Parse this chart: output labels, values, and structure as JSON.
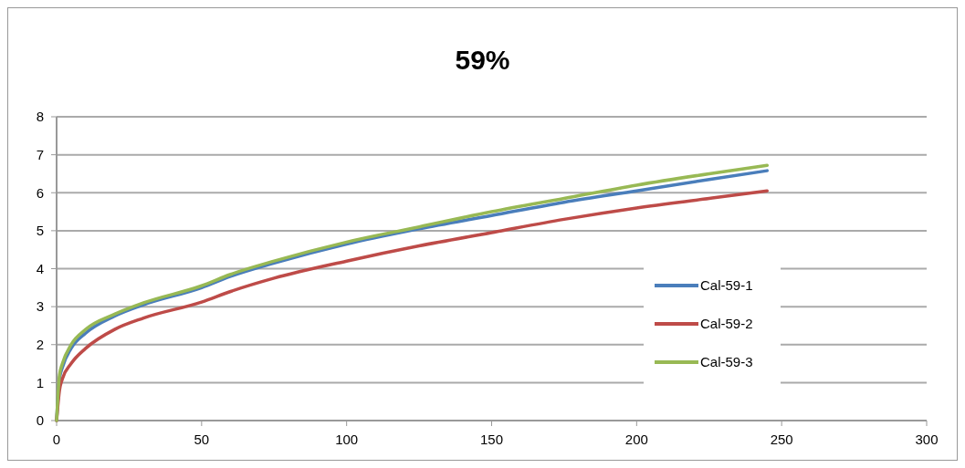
{
  "chart_data": {
    "type": "line",
    "title": "59%",
    "xlim": [
      0,
      300
    ],
    "xticks": [
      0,
      50,
      100,
      150,
      200,
      250,
      300
    ],
    "ylim": [
      0,
      8
    ],
    "yticks": [
      0,
      1,
      2,
      3,
      4,
      5,
      6,
      7,
      8
    ],
    "grid": "y",
    "legend": "right",
    "line_style": "solid",
    "marker": "none",
    "x": [
      0,
      1,
      2,
      5,
      10,
      20,
      30,
      50,
      60,
      75,
      100,
      125,
      150,
      175,
      200,
      225,
      245
    ],
    "series": [
      {
        "name": "Cal-59-1",
        "color": "#4a7ebb",
        "values": [
          0,
          1.1,
          1.4,
          1.9,
          2.3,
          2.75,
          3.05,
          3.5,
          3.8,
          4.15,
          4.65,
          5.05,
          5.4,
          5.75,
          6.05,
          6.35,
          6.58
        ]
      },
      {
        "name": "Cal-59-2",
        "color": "#be4b48",
        "values": [
          0,
          0.8,
          1.1,
          1.5,
          1.9,
          2.4,
          2.7,
          3.12,
          3.4,
          3.75,
          4.2,
          4.6,
          4.95,
          5.3,
          5.6,
          5.85,
          6.05
        ]
      },
      {
        "name": "Cal-59-3",
        "color": "#98b954",
        "values": [
          0,
          1.2,
          1.5,
          2.0,
          2.4,
          2.8,
          3.1,
          3.55,
          3.85,
          4.2,
          4.7,
          5.1,
          5.5,
          5.85,
          6.2,
          6.5,
          6.72
        ]
      }
    ]
  }
}
